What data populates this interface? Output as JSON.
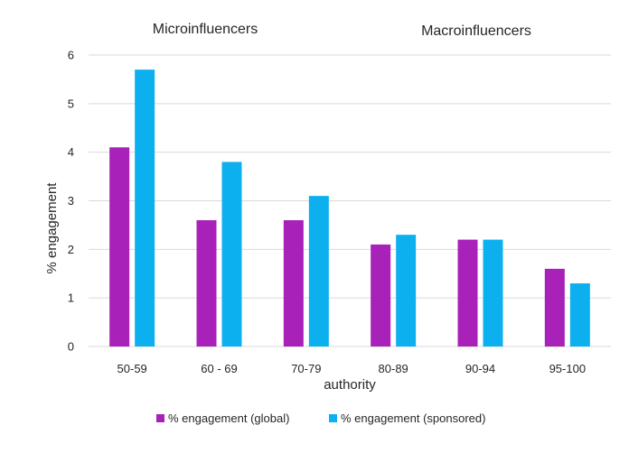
{
  "chart_data": {
    "type": "bar",
    "categories": [
      "50-59",
      "60 - 69",
      "70-79",
      "80-89",
      "90-94",
      "95-100"
    ],
    "series": [
      {
        "name": "% engagement (global)",
        "values": [
          4.1,
          2.6,
          2.6,
          2.1,
          2.2,
          1.6
        ]
      },
      {
        "name": "% engagement (sponsored)",
        "values": [
          5.7,
          3.8,
          3.1,
          2.3,
          2.2,
          1.3
        ]
      }
    ],
    "yticks": [
      "0",
      "1",
      "2",
      "3",
      "4",
      "5",
      "6"
    ],
    "xlabel": "authority",
    "ylabel": "% engagement",
    "ylim": [
      0,
      6
    ],
    "grid": true,
    "legend": "bottom",
    "annotations": [
      "Microinfluencers",
      "Macroinfluencers"
    ],
    "colors": {
      "global": "#a821b8",
      "sponsored": "#0db0ef",
      "grid": "#d9d9d9"
    }
  }
}
